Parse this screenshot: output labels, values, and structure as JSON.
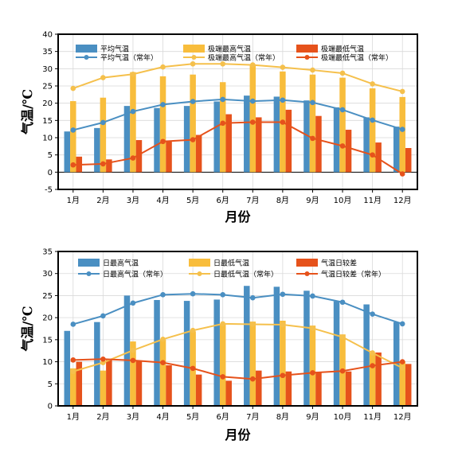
{
  "colors": {
    "blue": "#4a8fc2",
    "yellow": "#f8bd3c",
    "orange": "#e6521b",
    "line_blue": "#4a8fc2",
    "line_yellow": "#f5c04c",
    "line_orange": "#e6521b",
    "grid": "#d9d9d9"
  },
  "chart_data": [
    {
      "type": "bar",
      "categories": [
        "1月",
        "2月",
        "3月",
        "4月",
        "5月",
        "6月",
        "7月",
        "8月",
        "9月",
        "10月",
        "11月",
        "12月"
      ],
      "xlabel": "月份",
      "ylabel": "气温/℃",
      "ylim": [
        -5,
        40
      ],
      "yticks": [
        -5,
        0,
        5,
        10,
        15,
        20,
        25,
        30,
        35,
        40
      ],
      "grid": true,
      "legend_position": "top",
      "bar_series": [
        {
          "name": "平均气温",
          "color": "blue",
          "values": [
            11.8,
            12.8,
            19.2,
            18.6,
            19.2,
            20.5,
            22.2,
            21.9,
            20.8,
            18.8,
            15.9,
            13.2
          ]
        },
        {
          "name": "极端最高气温",
          "color": "yellow",
          "values": [
            20.6,
            21.6,
            29.0,
            27.8,
            28.3,
            26.1,
            31.1,
            29.2,
            28.3,
            27.4,
            24.3,
            21.8
          ]
        },
        {
          "name": "极端最低气温",
          "color": "orange",
          "values": [
            4.5,
            3.7,
            9.3,
            9.1,
            10.8,
            16.8,
            15.9,
            18.1,
            16.3,
            12.3,
            8.6,
            7.0
          ]
        }
      ],
      "line_series": [
        {
          "name": "平均气温（常年）",
          "color": "line_blue",
          "values": [
            12.2,
            14.4,
            17.6,
            19.6,
            20.5,
            21.1,
            20.6,
            20.9,
            20.2,
            18.1,
            15.1,
            12.4
          ]
        },
        {
          "name": "极端最高气温（常年）",
          "color": "line_yellow",
          "values": [
            24.3,
            27.4,
            28.4,
            30.5,
            31.4,
            31.4,
            31.1,
            30.4,
            29.6,
            28.7,
            25.6,
            23.4
          ]
        },
        {
          "name": "极端最低气温（常年）",
          "color": "line_orange",
          "values": [
            2.1,
            2.4,
            4.1,
            8.9,
            9.4,
            14.2,
            14.5,
            14.5,
            9.8,
            7.6,
            5.0,
            -0.5
          ]
        }
      ]
    },
    {
      "type": "bar",
      "categories": [
        "1月",
        "2月",
        "3月",
        "4月",
        "5月",
        "6月",
        "7月",
        "8月",
        "9月",
        "10月",
        "11月",
        "12月"
      ],
      "xlabel": "月份",
      "ylabel": "气温/℃",
      "ylim": [
        0,
        35
      ],
      "yticks": [
        0,
        5,
        10,
        15,
        20,
        25,
        30,
        35
      ],
      "grid": true,
      "legend_position": "top",
      "bar_series": [
        {
          "name": "日最高气温",
          "color": "blue",
          "values": [
            17.0,
            19.0,
            25.0,
            24.0,
            23.8,
            24.1,
            27.2,
            27.0,
            26.1,
            23.7,
            23.0,
            19.0
          ]
        },
        {
          "name": "日最低气温",
          "color": "yellow",
          "values": [
            8.5,
            8.0,
            14.6,
            15.0,
            16.9,
            18.4,
            19.1,
            19.3,
            18.2,
            16.2,
            12.0,
            10.1
          ]
        },
        {
          "name": "气温日较差",
          "color": "orange",
          "values": [
            10.0,
            10.5,
            10.2,
            9.2,
            7.1,
            5.7,
            8.0,
            7.8,
            7.7,
            7.8,
            12.1,
            9.5
          ]
        }
      ],
      "line_series": [
        {
          "name": "日最高气温（常年）",
          "color": "line_blue",
          "values": [
            18.5,
            20.4,
            23.3,
            25.2,
            25.4,
            25.2,
            24.5,
            25.3,
            24.9,
            23.5,
            20.8,
            18.6
          ]
        },
        {
          "name": "日最低气温（常年）",
          "color": "line_yellow",
          "values": [
            7.8,
            9.8,
            12.6,
            15.1,
            17.1,
            18.6,
            18.5,
            18.4,
            17.6,
            15.6,
            12.0,
            8.6
          ]
        },
        {
          "name": "气温日较差（常年）",
          "color": "line_orange",
          "values": [
            10.4,
            10.6,
            10.3,
            9.8,
            8.5,
            6.6,
            6.1,
            6.9,
            7.5,
            7.9,
            9.1,
            10.0
          ]
        }
      ]
    }
  ]
}
